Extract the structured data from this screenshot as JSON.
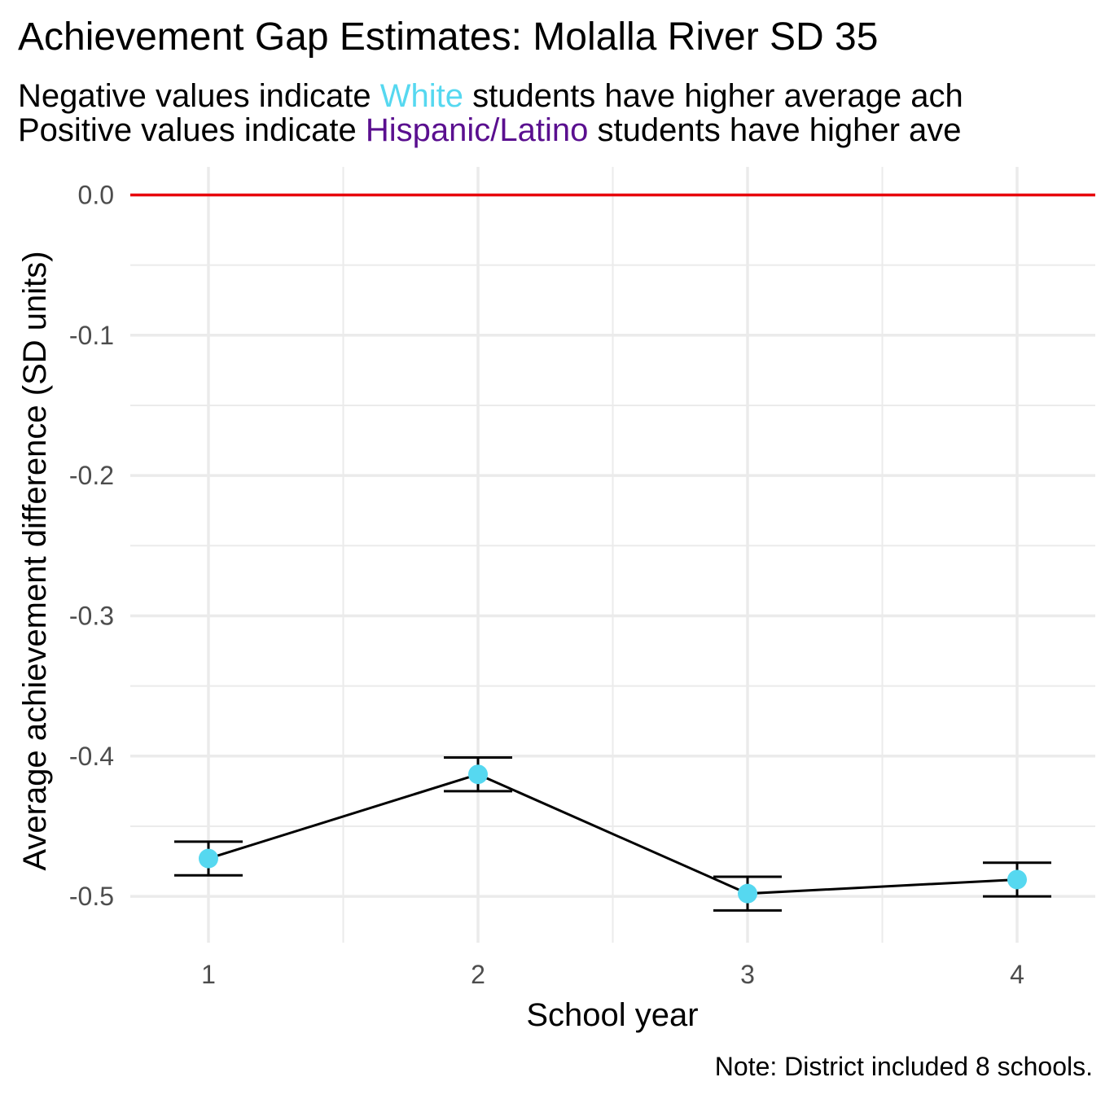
{
  "title": "Achievement Gap Estimates: Molalla River SD 35",
  "subtitle": {
    "line1": {
      "before": "Negative values indicate ",
      "highlight": "White",
      "after": " students have higher average ach"
    },
    "line2": {
      "before": "Positive values indicate ",
      "highlight": "Hispanic/Latino",
      "after": " students have higher ave"
    }
  },
  "caption": "Note: District included 8 schools.",
  "colors": {
    "white_group": "#56d8f0",
    "hispanic_group": "#5a0f8f",
    "reference_line": "#e8000b",
    "grid": "#ebebeb",
    "line": "#000000"
  },
  "chart_data": {
    "type": "line",
    "xlabel": "School year",
    "ylabel": "Average achievement difference (SD units)",
    "x": [
      1,
      2,
      3,
      4
    ],
    "x_tick_labels": [
      "1",
      "2",
      "3",
      "4"
    ],
    "y_tick_values": [
      0.0,
      -0.1,
      -0.2,
      -0.3,
      -0.4,
      -0.5
    ],
    "y_tick_labels": [
      "0.0",
      "-0.1",
      "-0.2",
      "-0.3",
      "-0.4",
      "-0.5"
    ],
    "xlim": [
      0.71,
      4.29
    ],
    "ylim": [
      -0.533,
      0.02
    ],
    "reference_line_y": 0.0,
    "grid": true,
    "legend": "none",
    "series": [
      {
        "values": [
          -0.473,
          -0.413,
          -0.498,
          -0.488
        ],
        "error_lower": [
          -0.485,
          -0.425,
          -0.51,
          -0.5
        ],
        "error_upper": [
          -0.461,
          -0.401,
          -0.486,
          -0.476
        ]
      }
    ]
  }
}
